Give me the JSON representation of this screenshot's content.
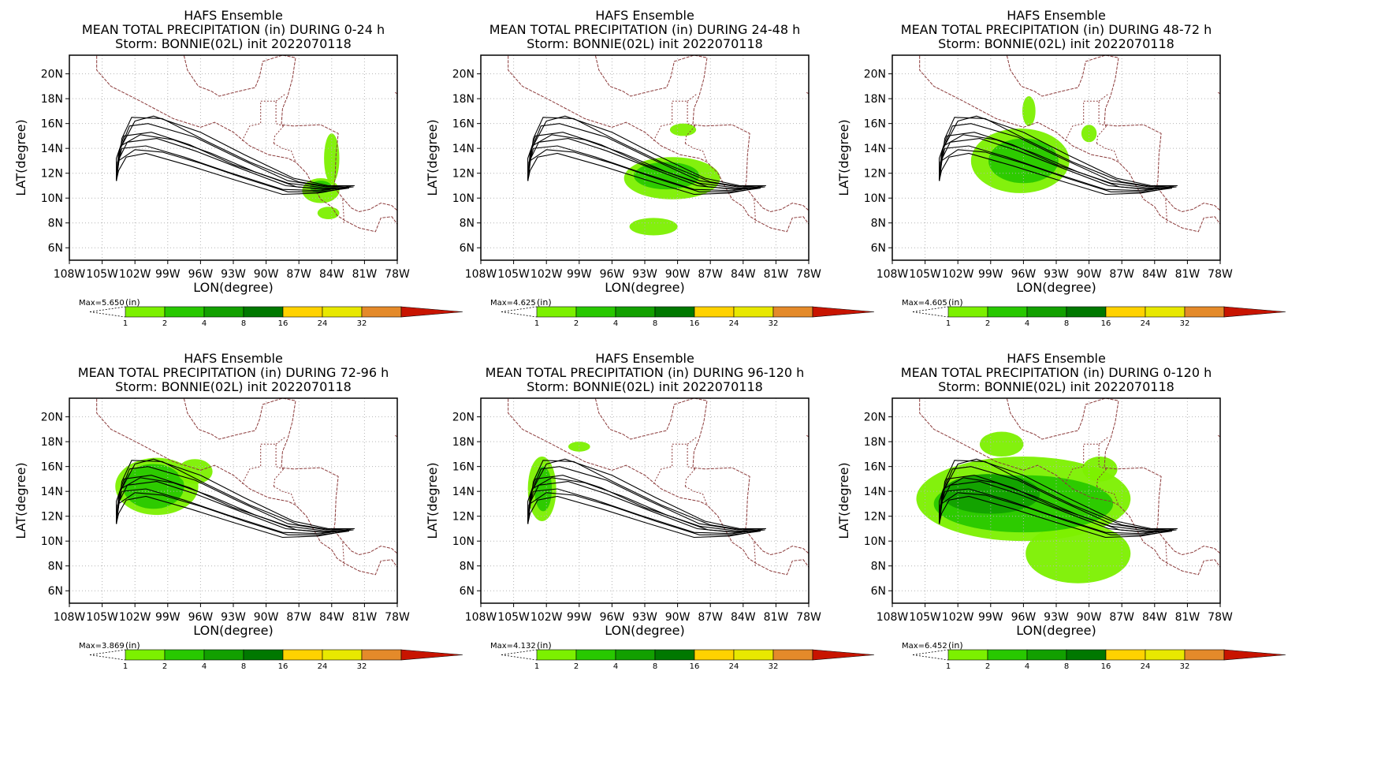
{
  "figure": {
    "header_line1": "HAFS Ensemble",
    "header_line3": "Storm: BONNIE(02L) init 2022070118",
    "xlabel": "LON(degree)",
    "ylabel": "LAT(degree)",
    "colorbar_unit": "(in)",
    "colorbar_levels": [
      "1",
      "2",
      "4",
      "8",
      "16",
      "24",
      "32"
    ],
    "colorbar_colors": [
      "#7cf000",
      "#28c800",
      "#12a000",
      "#007800",
      "#ffd200",
      "#e8e800",
      "#e48a2a",
      "#c81400"
    ],
    "xticks": [
      "108W",
      "105W",
      "102W",
      "99W",
      "96W",
      "93W",
      "90W",
      "87W",
      "84W",
      "81W",
      "78W"
    ],
    "yticks": [
      "6N",
      "8N",
      "10N",
      "12N",
      "14N",
      "16N",
      "18N",
      "20N"
    ],
    "xlim": [
      -108,
      -78
    ],
    "ylim": [
      5,
      21.5
    ],
    "colors": {
      "coast": "#8b3a3a",
      "grid": "#b4b4b4",
      "track": "#000000"
    }
  },
  "chart_data": [
    {
      "type": "contour-map",
      "title": "MEAN TOTAL PRECIPITATION (in) DURING  0-24 h",
      "max_label": "Max=5.650",
      "blobs": [
        {
          "lon": -85.0,
          "lat": 10.6,
          "rx": 1.7,
          "ry": 1.0,
          "level": 0
        },
        {
          "lon": -84.0,
          "lat": 13.2,
          "rx": 0.7,
          "ry": 2.0,
          "level": 0
        },
        {
          "lon": -85.0,
          "lat": 10.9,
          "rx": 1.0,
          "ry": 0.5,
          "level": 1
        },
        {
          "lon": -84.3,
          "lat": 8.8,
          "rx": 1.0,
          "ry": 0.5,
          "level": 0
        }
      ]
    },
    {
      "type": "contour-map",
      "title": "MEAN TOTAL PRECIPITATION (in) DURING 24-48 h",
      "max_label": "Max=4.625",
      "blobs": [
        {
          "lon": -90.5,
          "lat": 11.6,
          "rx": 4.4,
          "ry": 1.7,
          "level": 0
        },
        {
          "lon": -91.0,
          "lat": 11.8,
          "rx": 3.0,
          "ry": 1.1,
          "level": 1
        },
        {
          "lon": -92.2,
          "lat": 7.7,
          "rx": 2.2,
          "ry": 0.7,
          "level": 0
        },
        {
          "lon": -89.5,
          "lat": 15.5,
          "rx": 1.2,
          "ry": 0.5,
          "level": 0
        }
      ]
    },
    {
      "type": "contour-map",
      "title": "MEAN TOTAL PRECIPITATION (in) DURING 48-72 h",
      "max_label": "Max=4.605",
      "blobs": [
        {
          "lon": -96.3,
          "lat": 13.0,
          "rx": 4.5,
          "ry": 2.6,
          "level": 0
        },
        {
          "lon": -96.0,
          "lat": 13.0,
          "rx": 3.2,
          "ry": 1.8,
          "level": 1
        },
        {
          "lon": -95.5,
          "lat": 17.0,
          "rx": 0.6,
          "ry": 1.2,
          "level": 0
        },
        {
          "lon": -90.0,
          "lat": 15.2,
          "rx": 0.7,
          "ry": 0.7,
          "level": 0
        }
      ]
    },
    {
      "type": "contour-map",
      "title": "MEAN TOTAL PRECIPITATION (in) DURING 72-96 h",
      "max_label": "Max=3.869",
      "blobs": [
        {
          "lon": -100.0,
          "lat": 14.4,
          "rx": 3.8,
          "ry": 2.3,
          "level": 0
        },
        {
          "lon": -100.3,
          "lat": 14.4,
          "rx": 2.8,
          "ry": 1.8,
          "level": 1
        },
        {
          "lon": -96.5,
          "lat": 15.6,
          "rx": 1.6,
          "ry": 1.0,
          "level": 0
        }
      ]
    },
    {
      "type": "contour-map",
      "title": "MEAN TOTAL PRECIPITATION (in) DURING 96-120 h",
      "max_label": "Max=4.132",
      "blobs": [
        {
          "lon": -102.4,
          "lat": 14.2,
          "rx": 1.3,
          "ry": 2.6,
          "level": 0
        },
        {
          "lon": -102.3,
          "lat": 14.2,
          "rx": 0.8,
          "ry": 1.8,
          "level": 1
        },
        {
          "lon": -99.0,
          "lat": 17.6,
          "rx": 1.0,
          "ry": 0.4,
          "level": 0
        }
      ]
    },
    {
      "type": "contour-map",
      "title": "MEAN TOTAL PRECIPITATION (in) DURING 0-120 h",
      "max_label": "Max=6.452",
      "blobs": [
        {
          "lon": -96.0,
          "lat": 13.4,
          "rx": 9.8,
          "ry": 3.4,
          "level": 0
        },
        {
          "lon": -91.0,
          "lat": 9.0,
          "rx": 4.8,
          "ry": 2.4,
          "level": 0
        },
        {
          "lon": -96.0,
          "lat": 13.0,
          "rx": 8.2,
          "ry": 2.3,
          "level": 1
        },
        {
          "lon": -99.0,
          "lat": 13.8,
          "rx": 4.5,
          "ry": 1.6,
          "level": 2
        },
        {
          "lon": -89.0,
          "lat": 15.8,
          "rx": 1.6,
          "ry": 1.0,
          "level": 0
        },
        {
          "lon": -98.0,
          "lat": 17.8,
          "rx": 2.0,
          "ry": 1.0,
          "level": 0
        }
      ]
    }
  ],
  "tracks": [
    [
      [
        -103.7,
        11.4
      ],
      [
        -103.7,
        13.2
      ],
      [
        -103.0,
        15.0
      ],
      [
        -100.5,
        15.3
      ],
      [
        -97.0,
        14.3
      ],
      [
        -93.0,
        12.7
      ],
      [
        -88.0,
        11.2
      ],
      [
        -84.5,
        10.8
      ],
      [
        -82.2,
        10.9
      ]
    ],
    [
      [
        -103.7,
        11.4
      ],
      [
        -103.5,
        13.6
      ],
      [
        -102.5,
        15.8
      ],
      [
        -100.8,
        16.0
      ],
      [
        -96.5,
        14.9
      ],
      [
        -92.5,
        13.2
      ],
      [
        -88.0,
        11.4
      ],
      [
        -84.5,
        10.9
      ],
      [
        -82.2,
        11.0
      ]
    ],
    [
      [
        -103.7,
        11.4
      ],
      [
        -103.6,
        12.5
      ],
      [
        -103.2,
        14.0
      ],
      [
        -101.0,
        14.2
      ],
      [
        -97.5,
        13.3
      ],
      [
        -93.5,
        12.1
      ],
      [
        -88.5,
        10.7
      ],
      [
        -85.0,
        10.6
      ],
      [
        -82.5,
        10.9
      ]
    ],
    [
      [
        -103.7,
        11.4
      ],
      [
        -103.4,
        13.9
      ],
      [
        -102.0,
        16.2
      ],
      [
        -100.3,
        16.6
      ],
      [
        -96.0,
        15.3
      ],
      [
        -92.0,
        13.5
      ],
      [
        -87.5,
        11.6
      ],
      [
        -84.3,
        11.0
      ],
      [
        -82.0,
        11.0
      ]
    ],
    [
      [
        -103.7,
        11.4
      ],
      [
        -103.6,
        12.9
      ],
      [
        -102.7,
        14.5
      ],
      [
        -100.0,
        14.8
      ],
      [
        -96.5,
        13.8
      ],
      [
        -92.7,
        12.5
      ],
      [
        -88.2,
        11.0
      ],
      [
        -84.8,
        10.7
      ],
      [
        -82.3,
        10.9
      ]
    ],
    [
      [
        -103.7,
        11.4
      ],
      [
        -103.5,
        12.2
      ],
      [
        -102.8,
        13.3
      ],
      [
        -101.0,
        13.6
      ],
      [
        -97.0,
        12.6
      ],
      [
        -93.0,
        11.5
      ],
      [
        -88.5,
        10.3
      ],
      [
        -85.3,
        10.4
      ],
      [
        -82.7,
        10.8
      ]
    ],
    [
      [
        -103.7,
        11.4
      ],
      [
        -103.2,
        14.8
      ],
      [
        -102.3,
        16.5
      ],
      [
        -99.5,
        16.4
      ],
      [
        -95.5,
        14.6
      ],
      [
        -91.5,
        12.9
      ],
      [
        -87.0,
        11.3
      ],
      [
        -84.0,
        10.9
      ],
      [
        -81.9,
        11.0
      ]
    ],
    [
      [
        -103.7,
        11.4
      ],
      [
        -103.5,
        13.0
      ],
      [
        -102.0,
        13.9
      ],
      [
        -99.5,
        13.7
      ],
      [
        -96.0,
        12.8
      ],
      [
        -92.0,
        11.6
      ],
      [
        -88.0,
        10.5
      ],
      [
        -85.0,
        10.5
      ],
      [
        -82.4,
        10.8
      ]
    ],
    [
      [
        -103.7,
        11.4
      ],
      [
        -103.3,
        14.2
      ],
      [
        -101.5,
        15.1
      ],
      [
        -98.5,
        14.7
      ],
      [
        -95.0,
        13.6
      ],
      [
        -91.0,
        12.1
      ],
      [
        -87.2,
        10.9
      ],
      [
        -84.2,
        10.7
      ],
      [
        -82.0,
        10.9
      ]
    ]
  ],
  "coast": [
    [
      [
        -105.5,
        21.8
      ],
      [
        -105.5,
        20.3
      ],
      [
        -104.2,
        19.0
      ],
      [
        -101.5,
        17.8
      ],
      [
        -98.5,
        16.4
      ],
      [
        -96.0,
        15.7
      ],
      [
        -94.7,
        16.1
      ],
      [
        -93.0,
        15.3
      ],
      [
        -91.5,
        14.2
      ],
      [
        -89.8,
        13.5
      ],
      [
        -88.0,
        13.2
      ],
      [
        -87.3,
        12.9
      ],
      [
        -86.3,
        12.0
      ],
      [
        -85.7,
        11.0
      ],
      [
        -85.0,
        9.9
      ],
      [
        -84.0,
        9.3
      ],
      [
        -83.5,
        8.6
      ],
      [
        -82.8,
        8.2
      ],
      [
        -81.5,
        7.6
      ],
      [
        -80.0,
        7.3
      ],
      [
        -79.5,
        8.4
      ],
      [
        -78.5,
        8.5
      ],
      [
        -78.0,
        7.9
      ]
    ],
    [
      [
        -97.6,
        21.8
      ],
      [
        -97.2,
        20.3
      ],
      [
        -96.2,
        19.0
      ],
      [
        -95.0,
        18.6
      ],
      [
        -94.3,
        18.2
      ],
      [
        -92.5,
        18.6
      ],
      [
        -91.0,
        18.9
      ],
      [
        -90.6,
        19.8
      ],
      [
        -90.3,
        21.0
      ],
      [
        -88.5,
        21.5
      ],
      [
        -87.3,
        21.3
      ],
      [
        -87.6,
        19.6
      ],
      [
        -88.0,
        18.3
      ],
      [
        -88.5,
        17.2
      ],
      [
        -88.6,
        15.9
      ],
      [
        -87.5,
        15.8
      ],
      [
        -85.0,
        15.9
      ],
      [
        -83.4,
        15.2
      ],
      [
        -83.6,
        13.5
      ],
      [
        -83.7,
        11.5
      ],
      [
        -83.8,
        10.9
      ],
      [
        -83.0,
        10.0
      ],
      [
        -82.2,
        9.2
      ],
      [
        -81.5,
        8.9
      ],
      [
        -80.5,
        9.1
      ],
      [
        -79.5,
        9.6
      ],
      [
        -78.5,
        9.4
      ],
      [
        -78.0,
        9.0
      ]
    ],
    [
      [
        -84.9,
        21.8
      ],
      [
        -83.2,
        21.5
      ],
      [
        -81.5,
        21.5
      ],
      [
        -80.5,
        21.9
      ]
    ],
    [
      [
        -78.8,
        21.5
      ],
      [
        -78.0,
        21.7
      ]
    ],
    [
      [
        -78.2,
        18.5
      ],
      [
        -77.8,
        18.3
      ]
    ]
  ],
  "borders": [
    [
      [
        -92.2,
        14.6
      ],
      [
        -91.5,
        15.8
      ],
      [
        -90.5,
        16.0
      ],
      [
        -90.5,
        17.8
      ],
      [
        -89.1,
        17.8
      ],
      [
        -89.1,
        16.0
      ],
      [
        -88.4,
        15.8
      ]
    ],
    [
      [
        -89.1,
        17.8
      ],
      [
        -88.2,
        18.4
      ]
    ],
    [
      [
        -89.3,
        14.4
      ],
      [
        -88.5,
        14.0
      ],
      [
        -87.7,
        13.8
      ],
      [
        -87.3,
        12.9
      ]
    ],
    [
      [
        -89.3,
        14.4
      ],
      [
        -89.2,
        15.0
      ],
      [
        -88.4,
        15.8
      ]
    ],
    [
      [
        -85.7,
        11.1
      ],
      [
        -84.5,
        10.9
      ],
      [
        -83.7,
        11.0
      ]
    ],
    [
      [
        -83.0,
        9.9
      ],
      [
        -82.9,
        8.6
      ],
      [
        -82.9,
        8.0
      ]
    ],
    [
      [
        -77.5,
        8.5
      ],
      [
        -77.8,
        7.2
      ],
      [
        -77.3,
        6.8
      ]
    ]
  ]
}
